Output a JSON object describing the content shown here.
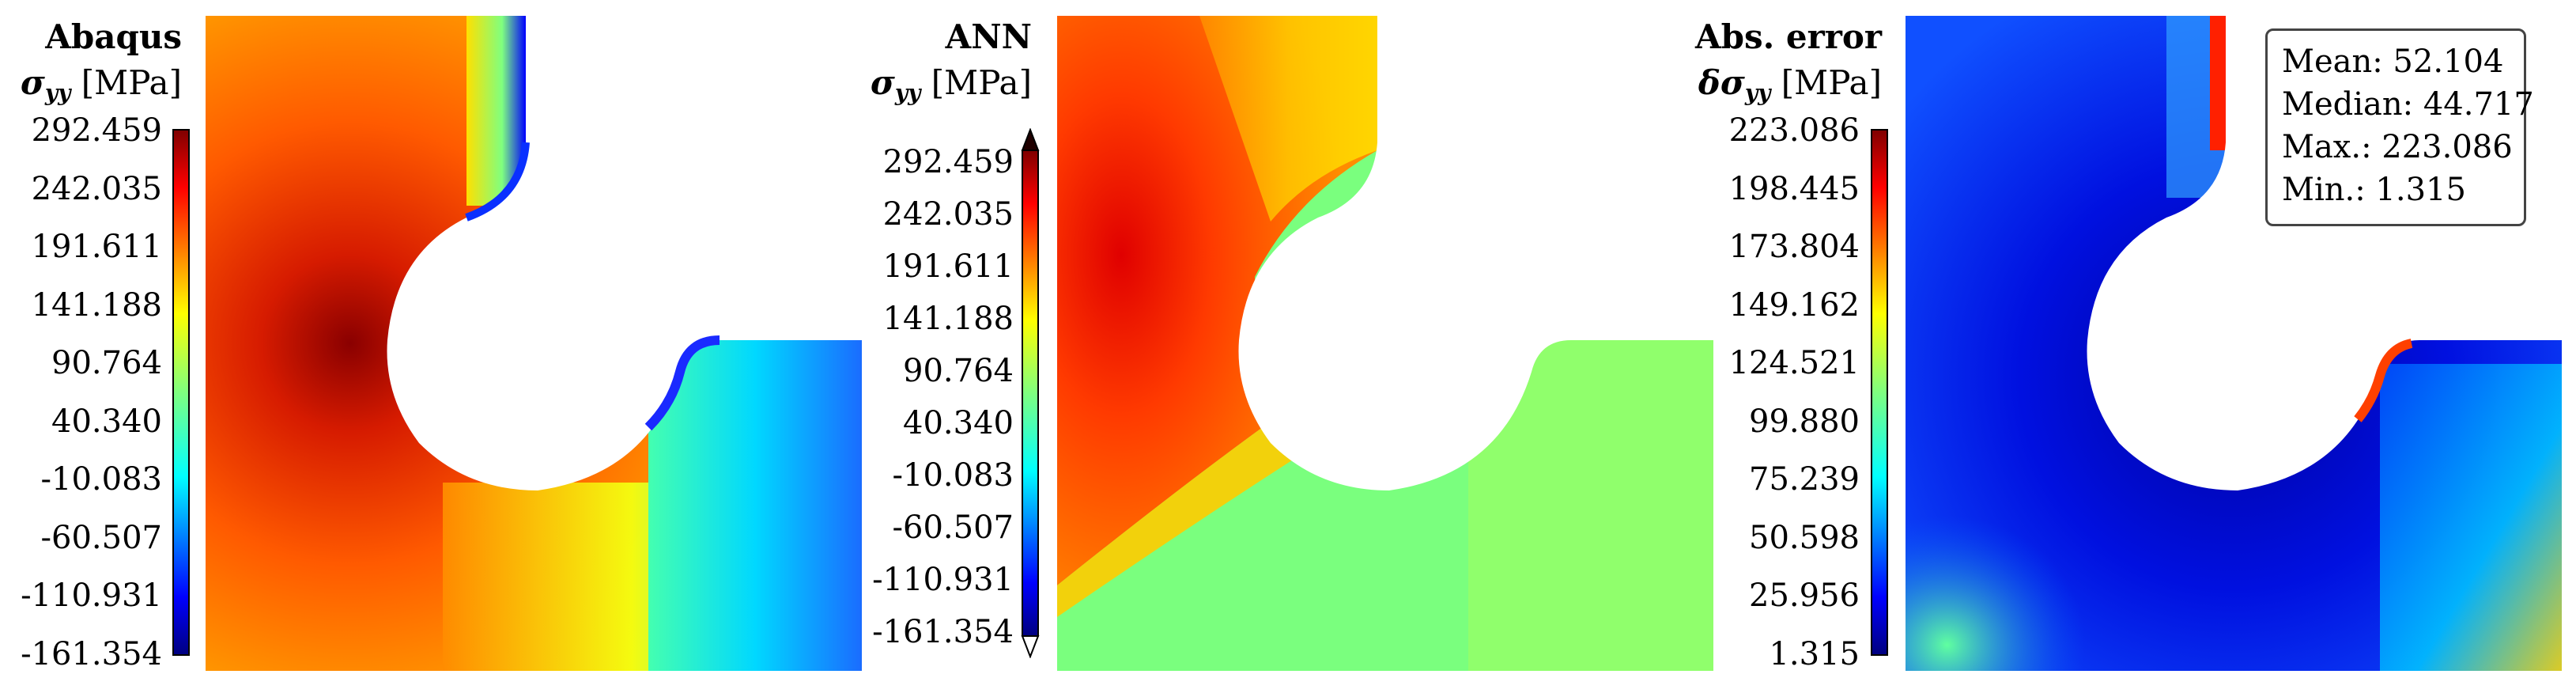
{
  "panels": [
    {
      "title": "Abaqus",
      "symbol": "σ",
      "subscript": "yy",
      "unit": "[MPa]",
      "colorbar_ticks": [
        "292.459",
        "242.035",
        "191.611",
        "141.188",
        "90.764",
        "40.340",
        "-10.083",
        "-60.507",
        "-110.931",
        "-161.354"
      ]
    },
    {
      "title": "ANN",
      "symbol": "σ",
      "subscript": "yy",
      "unit": "[MPa]",
      "colorbar_ticks": [
        "292.459",
        "242.035",
        "191.611",
        "141.188",
        "90.764",
        "40.340",
        "-10.083",
        "-60.507",
        "-110.931",
        "-161.354"
      ]
    },
    {
      "title": "Abs. error",
      "symbol": "δσ",
      "subscript": "yy",
      "unit": "[MPa]",
      "colorbar_ticks": [
        "223.086",
        "198.445",
        "173.804",
        "149.162",
        "124.521",
        "99.880",
        "75.239",
        "50.598",
        "25.956",
        "1.315"
      ]
    }
  ],
  "stats": {
    "mean": "Mean: 52.104",
    "median": "Median: 44.717",
    "max": "Max.: 223.086",
    "min": "Min.: 1.315"
  },
  "colormap": [
    "#00007f",
    "#0000ff",
    "#007fff",
    "#00ffff",
    "#7fff7f",
    "#ffff00",
    "#ff7f00",
    "#ff0000",
    "#7f0000"
  ]
}
